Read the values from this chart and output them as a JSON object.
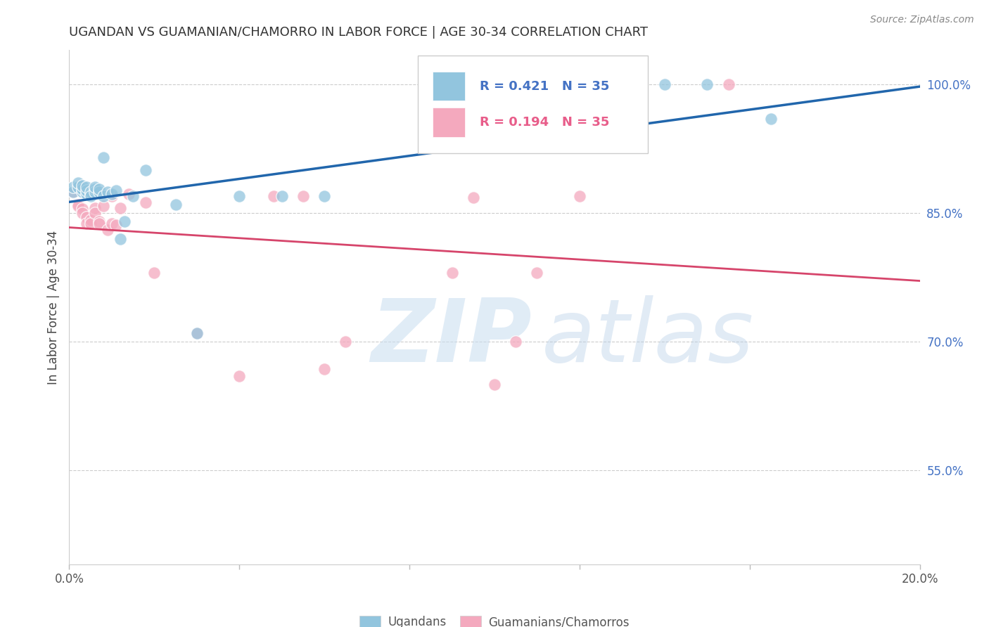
{
  "title": "UGANDAN VS GUAMANIAN/CHAMORRO IN LABOR FORCE | AGE 30-34 CORRELATION CHART",
  "source": "Source: ZipAtlas.com",
  "ylabel": "In Labor Force | Age 30-34",
  "xlim": [
    0.0,
    0.2
  ],
  "ylim": [
    0.44,
    1.04
  ],
  "yticks_right": [
    0.55,
    0.7,
    0.85,
    1.0
  ],
  "ytick_right_labels": [
    "55.0%",
    "70.0%",
    "85.0%",
    "100.0%"
  ],
  "blue_scatter_color": "#92c5de",
  "blue_line_color": "#2166ac",
  "pink_scatter_color": "#f4a9be",
  "pink_line_color": "#d6456b",
  "legend_label_blue": "Ugandans",
  "legend_label_pink": "Guamanians/Chamorros",
  "R_blue": 0.421,
  "N_blue": 35,
  "R_pink": 0.194,
  "N_pink": 35,
  "ugandan_x": [
    0.001,
    0.001,
    0.002,
    0.002,
    0.003,
    0.003,
    0.003,
    0.004,
    0.004,
    0.004,
    0.005,
    0.005,
    0.005,
    0.006,
    0.006,
    0.006,
    0.007,
    0.007,
    0.008,
    0.008,
    0.009,
    0.01,
    0.011,
    0.012,
    0.013,
    0.015,
    0.018,
    0.025,
    0.03,
    0.04,
    0.05,
    0.06,
    0.14,
    0.15,
    0.165
  ],
  "ugandan_y": [
    0.875,
    0.88,
    0.88,
    0.885,
    0.875,
    0.878,
    0.882,
    0.872,
    0.876,
    0.88,
    0.872,
    0.875,
    0.87,
    0.878,
    0.875,
    0.88,
    0.875,
    0.878,
    0.87,
    0.915,
    0.875,
    0.872,
    0.876,
    0.82,
    0.84,
    0.87,
    0.9,
    0.86,
    0.71,
    0.87,
    0.87,
    0.87,
    1.0,
    1.0,
    0.96
  ],
  "guamanian_x": [
    0.001,
    0.002,
    0.002,
    0.003,
    0.003,
    0.004,
    0.004,
    0.005,
    0.005,
    0.006,
    0.006,
    0.007,
    0.007,
    0.008,
    0.009,
    0.01,
    0.01,
    0.011,
    0.012,
    0.014,
    0.018,
    0.02,
    0.03,
    0.04,
    0.048,
    0.055,
    0.06,
    0.065,
    0.09,
    0.095,
    0.1,
    0.105,
    0.11,
    0.12,
    0.155
  ],
  "guamanian_y": [
    0.875,
    0.86,
    0.858,
    0.855,
    0.85,
    0.845,
    0.838,
    0.842,
    0.838,
    0.856,
    0.85,
    0.84,
    0.838,
    0.858,
    0.83,
    0.87,
    0.838,
    0.836,
    0.856,
    0.872,
    0.862,
    0.78,
    0.71,
    0.66,
    0.87,
    0.87,
    0.668,
    0.7,
    0.78,
    0.868,
    0.65,
    0.7,
    0.78,
    0.87,
    1.0
  ]
}
